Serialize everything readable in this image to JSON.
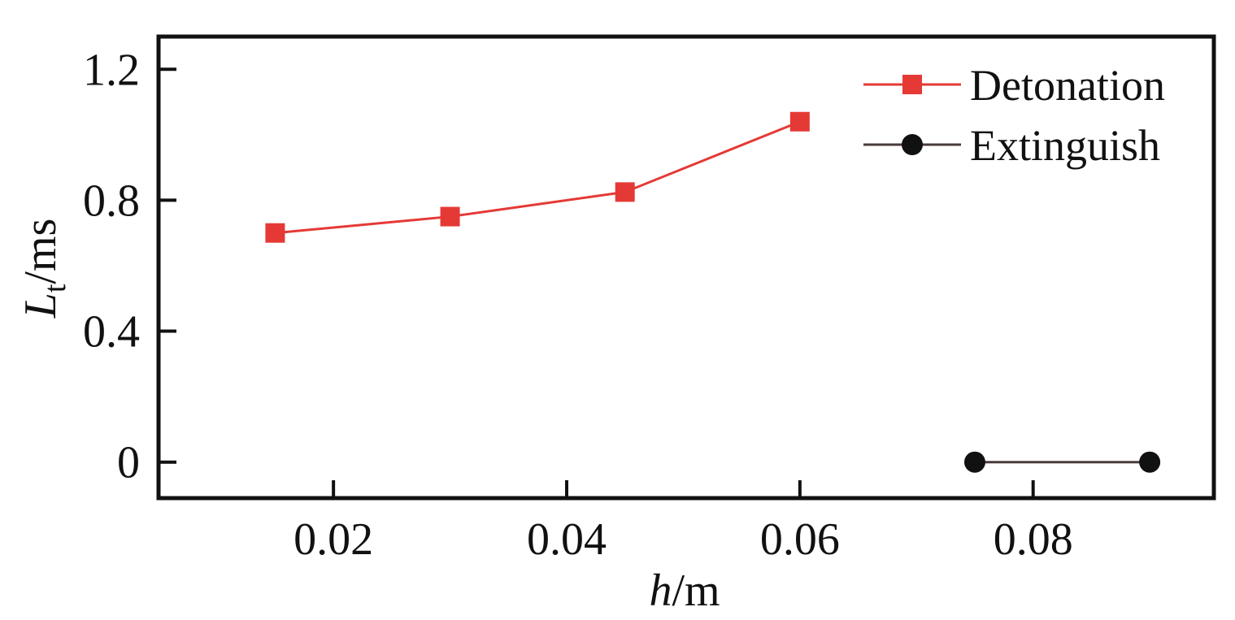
{
  "chart_data": {
    "type": "line",
    "title": "",
    "xlabel": {
      "var": "h",
      "unit": "/m"
    },
    "ylabel": {
      "var": "L",
      "sub": "t",
      "unit": "/ms"
    },
    "xlim": [
      0.005,
      0.0955
    ],
    "ylim": [
      -0.11,
      1.3
    ],
    "x_ticks": [
      {
        "value": 0.02,
        "label": "0.02"
      },
      {
        "value": 0.04,
        "label": "0.04"
      },
      {
        "value": 0.06,
        "label": "0.06"
      },
      {
        "value": 0.08,
        "label": "0.08"
      }
    ],
    "y_ticks": [
      {
        "value": 0,
        "label": "0"
      },
      {
        "value": 0.4,
        "label": "0.4"
      },
      {
        "value": 0.8,
        "label": "0.8"
      },
      {
        "value": 1.2,
        "label": "1.2"
      }
    ],
    "grid": false,
    "legend_position": "top-right",
    "series": [
      {
        "name": "Detonation",
        "color": "#e53935",
        "marker": "square",
        "x": [
          0.015,
          0.03,
          0.045,
          0.06
        ],
        "y": [
          0.7,
          0.75,
          0.825,
          1.04
        ]
      },
      {
        "name": "Extinguish",
        "color": "#111111",
        "line_color": "#4a3b3b",
        "marker": "circle",
        "x": [
          0.075,
          0.09
        ],
        "y": [
          0,
          0
        ]
      }
    ]
  }
}
